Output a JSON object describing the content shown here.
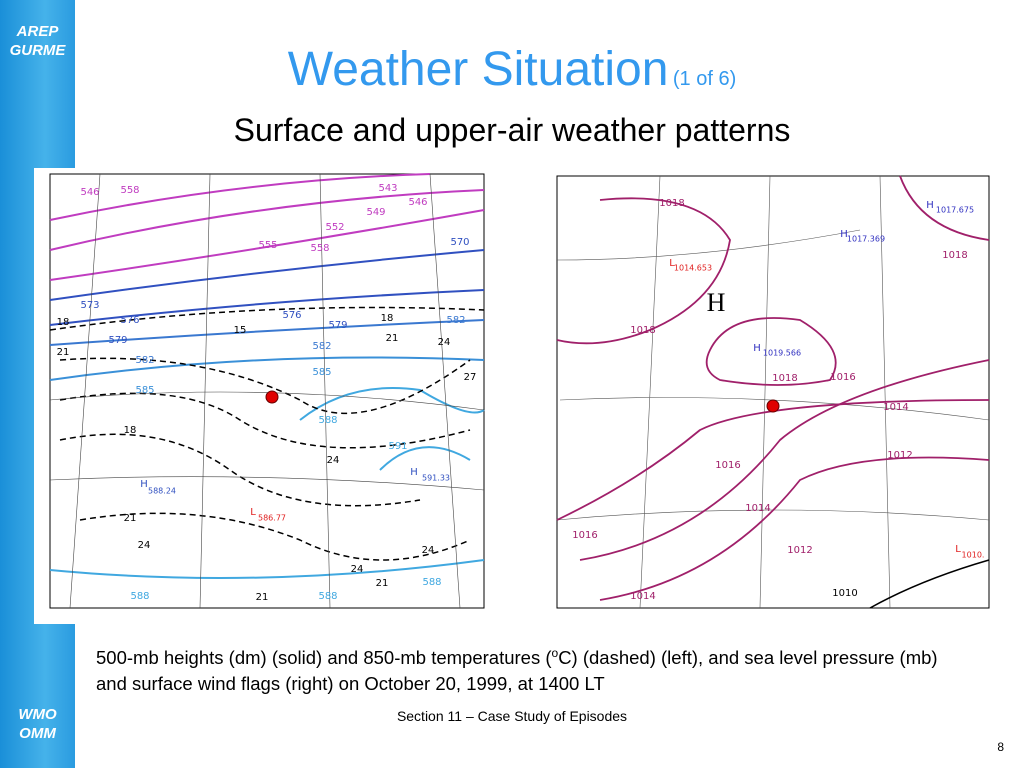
{
  "sidebar": {
    "top": [
      "AREP",
      "GURME"
    ],
    "bottom": [
      "WMO",
      "OMM"
    ]
  },
  "header": {
    "title": "Weather Situation",
    "title_note": "(1 of 6)",
    "subtitle": "Surface and upper-air weather patterns"
  },
  "maps": {
    "left": {
      "labels": [
        {
          "text": "546",
          "color": "#c03cc0"
        },
        {
          "text": "558",
          "color": "#c03cc0"
        },
        {
          "text": "543",
          "color": "#c03cc0"
        },
        {
          "text": "549",
          "color": "#c03cc0"
        },
        {
          "text": "546",
          "color": "#c03cc0"
        },
        {
          "text": "552",
          "color": "#c03cc0"
        },
        {
          "text": "555",
          "color": "#c03cc0"
        },
        {
          "text": "558",
          "color": "#c03cc0"
        },
        {
          "text": "570",
          "color": "#3050c0"
        },
        {
          "text": "573",
          "color": "#3050c0"
        },
        {
          "text": "576",
          "color": "#3050c0"
        },
        {
          "text": "576",
          "color": "#3050c0"
        },
        {
          "text": "579",
          "color": "#3050c0"
        },
        {
          "text": "579",
          "color": "#3050c0"
        },
        {
          "text": "582",
          "color": "#3a78d0"
        },
        {
          "text": "582",
          "color": "#3a78d0"
        },
        {
          "text": "582",
          "color": "#3a78d0"
        },
        {
          "text": "585",
          "color": "#3a90d8"
        },
        {
          "text": "585",
          "color": "#3a90d8"
        },
        {
          "text": "588",
          "color": "#40a8e0"
        },
        {
          "text": "591",
          "color": "#40a8e0"
        },
        {
          "text": "588",
          "color": "#40a8e0"
        },
        {
          "text": "588",
          "color": "#40a8e0"
        },
        {
          "text": "588",
          "color": "#40a8e0"
        },
        {
          "text": "18",
          "color": "#000000"
        },
        {
          "text": "18",
          "color": "#000000"
        },
        {
          "text": "21",
          "color": "#000000"
        },
        {
          "text": "15",
          "color": "#000000"
        },
        {
          "text": "18",
          "color": "#000000"
        },
        {
          "text": "21",
          "color": "#000000"
        },
        {
          "text": "24",
          "color": "#000000"
        },
        {
          "text": "27",
          "color": "#000000"
        },
        {
          "text": "24",
          "color": "#000000"
        },
        {
          "text": "21",
          "color": "#000000"
        },
        {
          "text": "24",
          "color": "#000000"
        },
        {
          "text": "21",
          "color": "#000000"
        },
        {
          "text": "21",
          "color": "#000000"
        },
        {
          "text": "24",
          "color": "#000000"
        },
        {
          "text": "24",
          "color": "#000000"
        },
        {
          "text": "H",
          "color": "#3050c0"
        },
        {
          "text": "588.24",
          "color": "#3050c0"
        },
        {
          "text": "L",
          "color": "#e02020"
        },
        {
          "text": "586.77",
          "color": "#e02020"
        },
        {
          "text": "H",
          "color": "#3050c0"
        },
        {
          "text": "591.33",
          "color": "#3050c0"
        }
      ]
    },
    "right": {
      "labels": [
        {
          "text": "1018",
          "color": "#a0206a"
        },
        {
          "text": "H",
          "color": "#3030c0"
        },
        {
          "text": "1017.675",
          "color": "#3030c0"
        },
        {
          "text": "H",
          "color": "#3030c0"
        },
        {
          "text": "1017.369",
          "color": "#3030c0"
        },
        {
          "text": "1018",
          "color": "#a0206a"
        },
        {
          "text": "L",
          "color": "#e02020"
        },
        {
          "text": "1014.653",
          "color": "#e02020"
        },
        {
          "text": "H",
          "color": "#000000"
        },
        {
          "text": "1018",
          "color": "#a0206a"
        },
        {
          "text": "H",
          "color": "#3030c0"
        },
        {
          "text": "1019.566",
          "color": "#3030c0"
        },
        {
          "text": "1018",
          "color": "#a0206a"
        },
        {
          "text": "1016",
          "color": "#a0206a"
        },
        {
          "text": "1014",
          "color": "#a0206a"
        },
        {
          "text": "1016",
          "color": "#a0206a"
        },
        {
          "text": "1012",
          "color": "#a0206a"
        },
        {
          "text": "1014",
          "color": "#a0206a"
        },
        {
          "text": "1016",
          "color": "#a0206a"
        },
        {
          "text": "1012",
          "color": "#a0206a"
        },
        {
          "text": "L",
          "color": "#e02020"
        },
        {
          "text": "1010.",
          "color": "#e02020"
        },
        {
          "text": "1014",
          "color": "#a0206a"
        },
        {
          "text": "1010",
          "color": "#000000"
        }
      ]
    }
  },
  "caption": {
    "before": "500-mb heights (dm) (solid) and 850-mb temperatures (",
    "sup": "o",
    "after": "C) (dashed) (left), and sea level pressure (mb) and surface wind flags (right) on October 20, 1999, at 1400 LT"
  },
  "footer": "Section 11 – Case Study of Episodes",
  "page_number": "8"
}
